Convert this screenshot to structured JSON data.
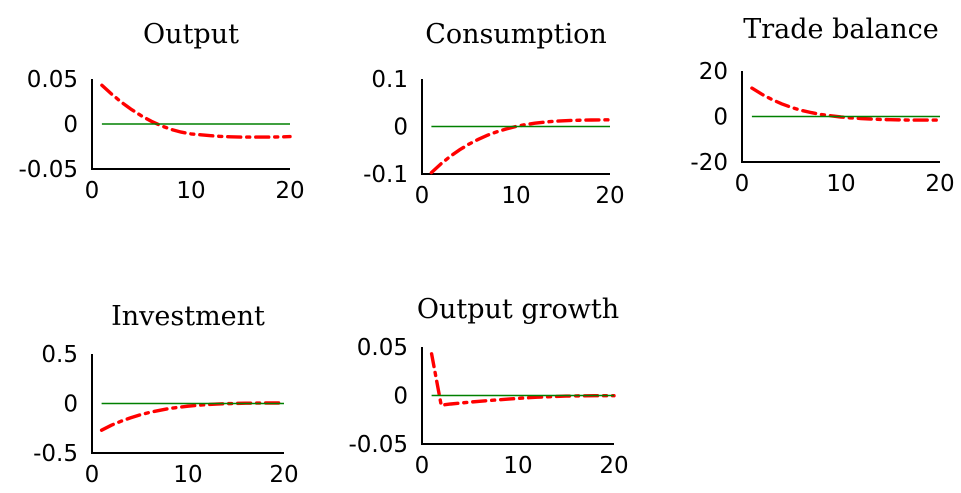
{
  "colors": {
    "response": "#ff0000",
    "zero_line": "#008000",
    "axis": "#000000"
  },
  "chart_data": [
    {
      "type": "line",
      "title": "Output",
      "xlim": [
        0,
        20
      ],
      "ylim": [
        -0.05,
        0.05
      ],
      "xticks": [
        0,
        10,
        20
      ],
      "xtick_labels": [
        "0",
        "10",
        "20"
      ],
      "yticks": [
        0.05,
        0,
        -0.05
      ],
      "ytick_labels": [
        "0.05",
        "0",
        "-0.05"
      ],
      "grid": false,
      "series": [
        {
          "style": "dashdot",
          "color": "#ff0000",
          "x": [
            1,
            2,
            3,
            4,
            5,
            6,
            7,
            8,
            9,
            10,
            11,
            12,
            13,
            14,
            15,
            16,
            17,
            18,
            19,
            20
          ],
          "y": [
            0.043,
            0.033,
            0.024,
            0.016,
            0.009,
            0.003,
            -0.002,
            -0.006,
            -0.009,
            -0.011,
            -0.012,
            -0.013,
            -0.0138,
            -0.0142,
            -0.0145,
            -0.0146,
            -0.0146,
            -0.0145,
            -0.0143,
            -0.014
          ]
        },
        {
          "style": "solid",
          "color": "#008000",
          "x": [
            1,
            20
          ],
          "y": [
            0,
            0
          ]
        }
      ]
    },
    {
      "type": "line",
      "title": "Consumption",
      "xlim": [
        0,
        20
      ],
      "ylim": [
        -0.1,
        0.1
      ],
      "xticks": [
        0,
        10,
        20
      ],
      "xtick_labels": [
        "0",
        "10",
        "20"
      ],
      "yticks": [
        0.1,
        0,
        -0.1
      ],
      "ytick_labels": [
        "0.1",
        "0",
        "-0.1"
      ],
      "grid": false,
      "series": [
        {
          "style": "dashdot",
          "color": "#ff0000",
          "x": [
            1,
            2,
            3,
            4,
            5,
            6,
            7,
            8,
            9,
            10,
            11,
            12,
            13,
            14,
            15,
            16,
            17,
            18,
            19,
            20
          ],
          "y": [
            -0.097,
            -0.079,
            -0.063,
            -0.049,
            -0.037,
            -0.027,
            -0.018,
            -0.011,
            -0.005,
            0.0,
            0.004,
            0.007,
            0.009,
            0.011,
            0.012,
            0.0128,
            0.0133,
            0.0136,
            0.0138,
            0.014
          ]
        },
        {
          "style": "solid",
          "color": "#008000",
          "x": [
            1,
            20
          ],
          "y": [
            0,
            0
          ]
        }
      ]
    },
    {
      "type": "line",
      "title": "Trade balance",
      "xlim": [
        0,
        20
      ],
      "ylim": [
        -20,
        20
      ],
      "xticks": [
        0,
        10,
        20
      ],
      "xtick_labels": [
        "0",
        "10",
        "20"
      ],
      "yticks": [
        20,
        0,
        -20
      ],
      "ytick_labels": [
        "20",
        "0",
        "-20"
      ],
      "grid": false,
      "series": [
        {
          "style": "dashdot",
          "color": "#ff0000",
          "x": [
            1,
            2,
            3,
            4,
            5,
            6,
            7,
            8,
            9,
            10,
            11,
            12,
            13,
            14,
            15,
            16,
            17,
            18,
            19,
            20
          ],
          "y": [
            12.5,
            9.8,
            7.5,
            5.6,
            4.0,
            2.7,
            1.7,
            0.9,
            0.3,
            -0.2,
            -0.6,
            -0.9,
            -1.1,
            -1.3,
            -1.4,
            -1.5,
            -1.6,
            -1.6,
            -1.6,
            -1.6
          ]
        },
        {
          "style": "solid",
          "color": "#008000",
          "x": [
            1,
            20
          ],
          "y": [
            0,
            0
          ]
        }
      ]
    },
    {
      "type": "line",
      "title": "Investment",
      "xlim": [
        0,
        20
      ],
      "ylim": [
        -0.5,
        0.5
      ],
      "xticks": [
        0,
        10,
        20
      ],
      "xtick_labels": [
        "0",
        "10",
        "20"
      ],
      "yticks": [
        0.5,
        0,
        -0.5
      ],
      "ytick_labels": [
        "0.5",
        "0",
        "-0.5"
      ],
      "grid": false,
      "series": [
        {
          "style": "dashdot",
          "color": "#ff0000",
          "x": [
            1,
            2,
            3,
            4,
            5,
            6,
            7,
            8,
            9,
            10,
            11,
            12,
            13,
            14,
            15,
            16,
            17,
            18,
            19,
            20
          ],
          "y": [
            -0.27,
            -0.22,
            -0.18,
            -0.145,
            -0.115,
            -0.09,
            -0.07,
            -0.052,
            -0.038,
            -0.027,
            -0.018,
            -0.011,
            -0.006,
            -0.002,
            0.001,
            0.003,
            0.004,
            0.005,
            0.005,
            0.005
          ]
        },
        {
          "style": "solid",
          "color": "#008000",
          "x": [
            1,
            20
          ],
          "y": [
            0,
            0
          ]
        }
      ]
    },
    {
      "type": "line",
      "title": "Output growth",
      "xlim": [
        0,
        20
      ],
      "ylim": [
        -0.05,
        0.05
      ],
      "xticks": [
        0,
        10,
        20
      ],
      "xtick_labels": [
        "0",
        "10",
        "20"
      ],
      "yticks": [
        0.05,
        0,
        -0.05
      ],
      "ytick_labels": [
        "0.05",
        "0",
        "-0.05"
      ],
      "grid": false,
      "series": [
        {
          "style": "dashdot",
          "color": "#ff0000",
          "x": [
            1,
            2,
            3,
            4,
            5,
            6,
            7,
            8,
            9,
            10,
            11,
            12,
            13,
            14,
            15,
            16,
            17,
            18,
            19,
            20
          ],
          "y": [
            0.043,
            -0.01,
            -0.0088,
            -0.0078,
            -0.0068,
            -0.006,
            -0.0052,
            -0.0044,
            -0.0037,
            -0.003,
            -0.0024,
            -0.0018,
            -0.0013,
            -0.0009,
            -0.0006,
            -0.0004,
            -0.0003,
            -0.0002,
            -0.0002,
            -0.0002
          ]
        },
        {
          "style": "solid",
          "color": "#008000",
          "x": [
            1,
            20
          ],
          "y": [
            0,
            0
          ]
        }
      ]
    }
  ]
}
